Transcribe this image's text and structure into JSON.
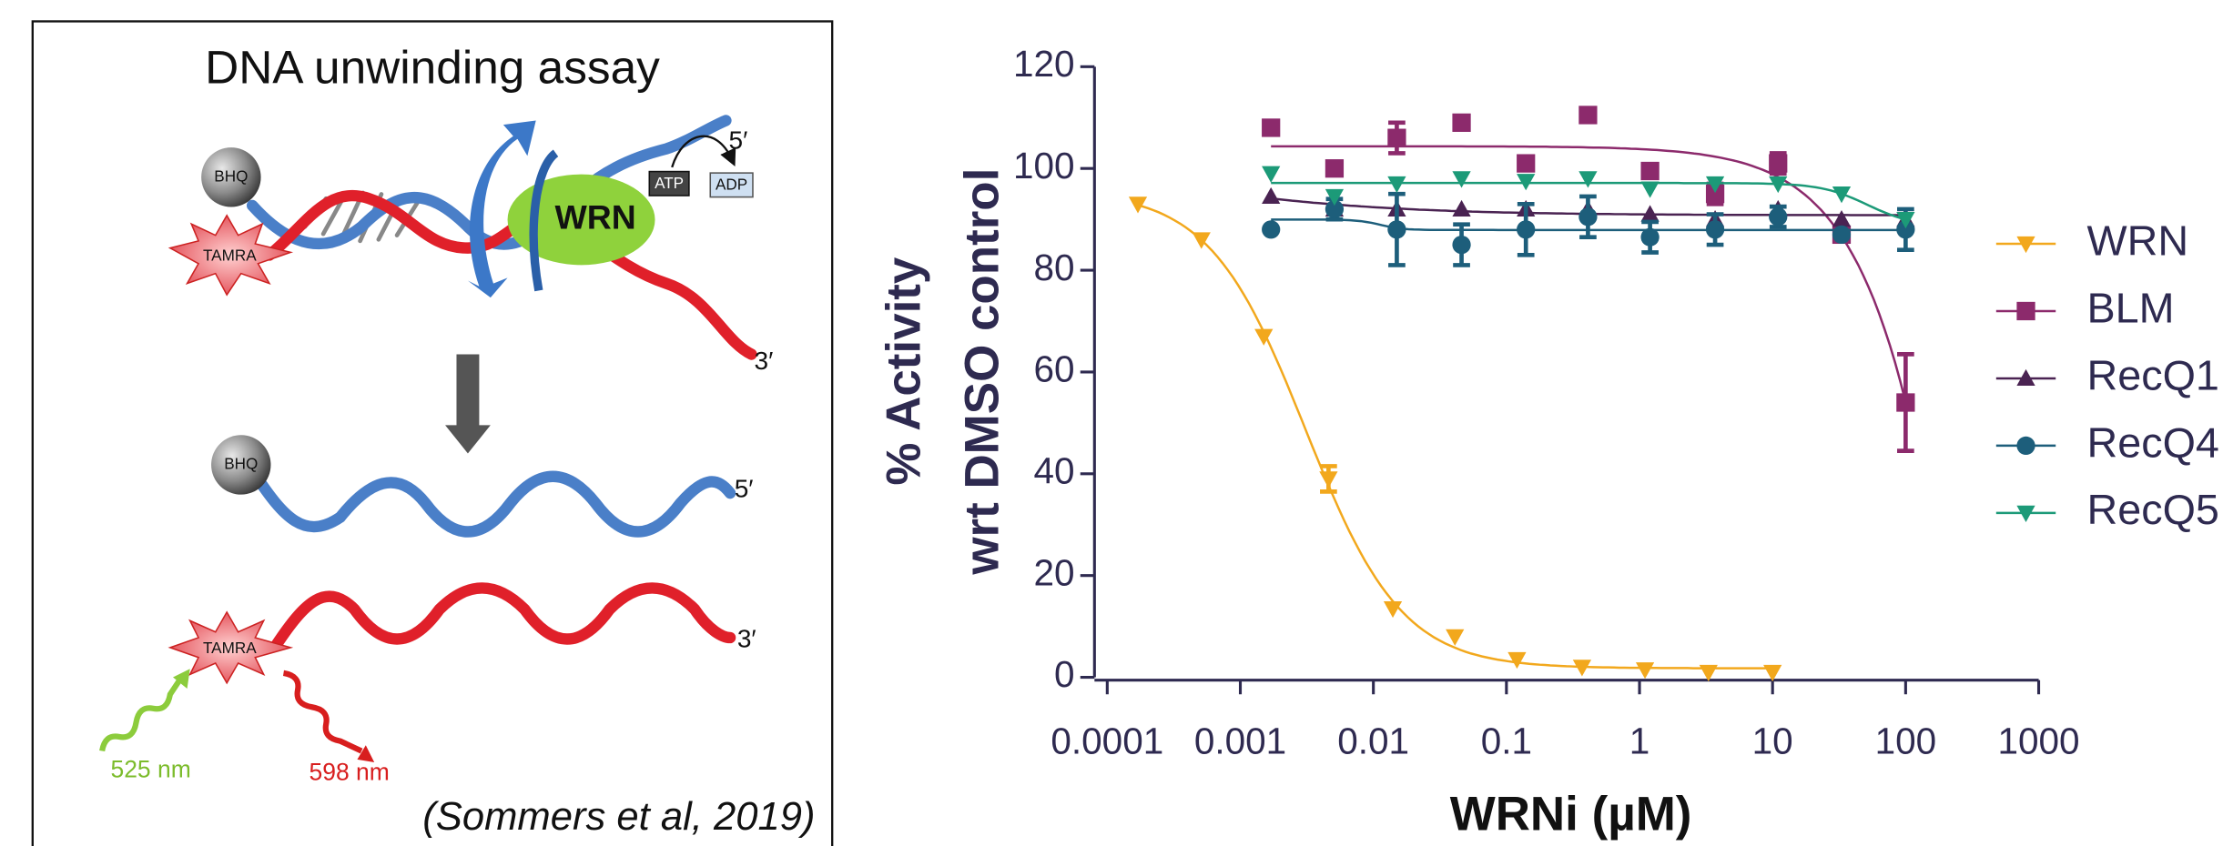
{
  "diagram": {
    "title": "DNA unwinding assay",
    "top": {
      "quencher": "BHQ",
      "fluorophore": "TAMRA",
      "enzyme": "WRN",
      "atp": "ATP",
      "adp": "ADP",
      "end5": "5′",
      "end3": "3′"
    },
    "bottom": {
      "quencher": "BHQ",
      "end5": "5′",
      "fluorophore": "TAMRA",
      "end3": "3′",
      "excitation": "525 nm",
      "emission": "598 nm"
    },
    "citation": "(Sommers et al, 2019)"
  },
  "chart_data": {
    "type": "scatter",
    "ylabel": [
      "% Activity",
      "wrt DMSO control"
    ],
    "xlabel": "WRNi (µM)",
    "xscale": "log",
    "xlim": [
      0.0001,
      1000
    ],
    "xticks": [
      0.0001,
      0.001,
      0.01,
      0.1,
      1,
      10,
      100,
      1000
    ],
    "ylim": [
      0,
      120
    ],
    "yticks": [
      0,
      20,
      40,
      60,
      80,
      100,
      120
    ],
    "fit": "sigmoid",
    "series": [
      {
        "name": "WRN",
        "color": "#f2a81d",
        "marker": "triangle-down",
        "x": [
          0.00017,
          0.00051,
          0.0015,
          0.0046,
          0.014,
          0.041,
          0.12,
          0.37,
          1.1,
          3.3,
          10
        ],
        "values": [
          93,
          86,
          67,
          39,
          13.5,
          8,
          3.5,
          2,
          1.5,
          1,
          1
        ],
        "errors": [
          null,
          null,
          null,
          2.5,
          null,
          null,
          null,
          null,
          null,
          null,
          null
        ]
      },
      {
        "name": "BLM",
        "color": "#8c2a6c",
        "marker": "square",
        "x": [
          0.0017,
          0.0051,
          0.015,
          0.046,
          0.14,
          0.41,
          1.2,
          3.7,
          11,
          33,
          100
        ],
        "values": [
          108,
          100,
          106,
          109,
          101,
          110.5,
          99.5,
          95,
          101,
          87,
          54
        ],
        "errors": [
          null,
          null,
          3,
          null,
          null,
          null,
          null,
          2,
          2,
          null,
          9.5
        ]
      },
      {
        "name": "RecQ1",
        "color": "#4a2352",
        "marker": "triangle-up",
        "x": [
          0.0017,
          0.0051,
          0.015,
          0.046,
          0.14,
          0.41,
          1.2,
          3.7,
          11,
          33,
          100
        ],
        "values": [
          94.5,
          92,
          92,
          92,
          92,
          92,
          91,
          90,
          92,
          90,
          90
        ],
        "errors": [
          null,
          null,
          null,
          null,
          null,
          null,
          null,
          null,
          null,
          null,
          null
        ]
      },
      {
        "name": "RecQ4",
        "color": "#1d5e7b",
        "marker": "circle",
        "x": [
          0.0017,
          0.0051,
          0.015,
          0.046,
          0.14,
          0.41,
          1.2,
          3.7,
          11,
          33,
          100
        ],
        "values": [
          88,
          92,
          88,
          85,
          88,
          90.5,
          86.5,
          88,
          90.5,
          87,
          88
        ],
        "errors": [
          null,
          2,
          7,
          4,
          5,
          4,
          3,
          3,
          2,
          null,
          4
        ]
      },
      {
        "name": "RecQ5",
        "color": "#1c9a78",
        "marker": "triangle-down",
        "x": [
          0.0017,
          0.0051,
          0.015,
          0.046,
          0.14,
          0.41,
          1.2,
          3.7,
          11,
          33,
          100
        ],
        "values": [
          99,
          94.5,
          97,
          98,
          97.5,
          98,
          96,
          97,
          97,
          95,
          90
        ],
        "errors": [
          null,
          null,
          null,
          null,
          null,
          null,
          null,
          null,
          null,
          null,
          null
        ]
      }
    ]
  }
}
